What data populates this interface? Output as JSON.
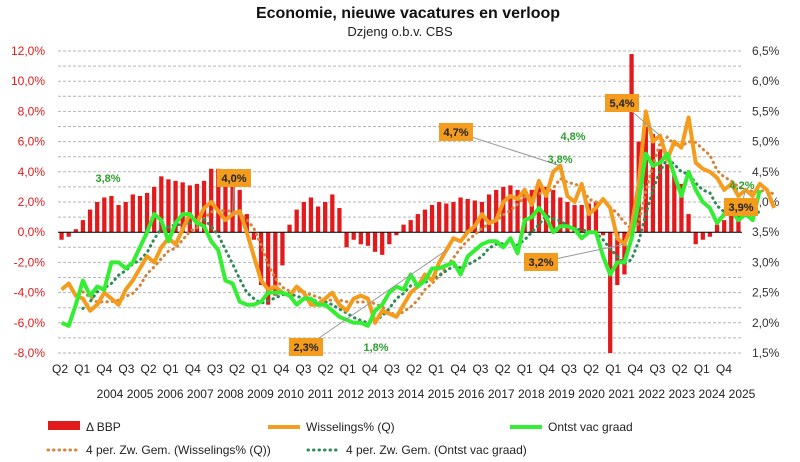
{
  "chart_data": {
    "type": "line",
    "title": "Economie, nieuwe vacatures en verloop",
    "subtitle": "Dzjeng o.b.v. CBS",
    "y_left": {
      "ticks": [
        "12,0%",
        "10,0%",
        "8,0%",
        "6,0%",
        "4,0%",
        "2,0%",
        "0,0%",
        "-2,0%",
        "-4,0%",
        "-6,0%",
        "-8,0%"
      ],
      "range": [
        -8,
        12
      ],
      "color": "#e31a1c"
    },
    "y_right": {
      "ticks": [
        "6,5%",
        "6,0%",
        "5,5%",
        "5,0%",
        "4,5%",
        "4,0%",
        "3,5%",
        "3,0%",
        "2,5%",
        "2,0%",
        "1,5%"
      ],
      "range": [
        1.5,
        6.5
      ]
    },
    "x_ticks_quarter": [
      "Q2",
      "Q1",
      "Q4",
      "Q3",
      "Q2",
      "Q1",
      "Q4",
      "Q3",
      "Q2",
      "Q1",
      "Q4",
      "Q3",
      "Q2",
      "Q1",
      "Q4",
      "Q3",
      "Q2",
      "Q1",
      "Q4",
      "Q3",
      "Q2",
      "Q1",
      "Q4",
      "Q3",
      "Q2",
      "Q1",
      "Q4",
      "Q3",
      "Q2",
      "Q1",
      "Q4"
    ],
    "x_ticks_year": [
      "2004",
      "2005",
      "2006",
      "2007",
      "2008",
      "2009",
      "2010",
      "2011",
      "2012",
      "2013",
      "2014",
      "2015",
      "2016",
      "2017",
      "2018",
      "2019",
      "2020",
      "2021",
      "2022",
      "2023",
      "2024",
      "2025"
    ],
    "grid": "horizontal dashed",
    "legend_position": "bottom",
    "legend": [
      {
        "label": "Δ BBP",
        "style": "bar",
        "color": "#e31a1c"
      },
      {
        "label": "Wisselings% (Q)",
        "style": "line",
        "color": "#f39c1e"
      },
      {
        "label": "Ontst vac graad",
        "style": "line",
        "color": "#33ee33"
      },
      {
        "label": "4 per. Zw. Gem. (Wisselings% (Q))",
        "style": "dotted",
        "color": "#d4853b"
      },
      {
        "label": "4 per. Zw. Gem. (Ontst vac graad)",
        "style": "dotted",
        "color": "#2e8b57"
      }
    ],
    "series": [
      {
        "name": "Δ BBP",
        "axis": "left",
        "type": "bar",
        "values": [
          -0.5,
          -0.3,
          0.2,
          0.8,
          1.5,
          2.0,
          2.3,
          2.4,
          1.8,
          2.0,
          2.5,
          2.4,
          2.6,
          3.0,
          3.7,
          3.5,
          3.4,
          3.3,
          3.1,
          3.2,
          3.4,
          4.2,
          4.2,
          3.5,
          3.2,
          2.8,
          1.2,
          -0.5,
          -3.5,
          -4.8,
          -4.2,
          -2.2,
          0.5,
          1.5,
          2.0,
          2.3,
          1.7,
          2.0,
          2.5,
          1.6,
          -1.0,
          -0.5,
          -0.8,
          -0.9,
          -1.3,
          -1.5,
          -0.8,
          -0.2,
          0.5,
          0.8,
          1.2,
          1.5,
          1.8,
          2.0,
          1.9,
          2.0,
          2.3,
          2.2,
          2.1,
          2.0,
          2.5,
          2.8,
          3.0,
          3.1,
          2.8,
          2.5,
          2.8,
          3.2,
          3.0,
          2.8,
          2.3,
          2.0,
          1.8,
          1.8,
          1.9,
          2.0,
          -0.2,
          -8.0,
          -3.5,
          -2.8,
          11.8,
          6.0,
          7.0,
          6.5,
          5.5,
          4.5,
          3.8,
          3.2,
          1.2,
          -0.8,
          -0.5,
          -0.3,
          0.5,
          0.8,
          1.4,
          1.7
        ],
        "annotations": []
      },
      {
        "name": "Wisselings% (Q)",
        "axis": "right",
        "type": "line",
        "values": [
          2.55,
          2.65,
          2.45,
          2.4,
          2.2,
          2.3,
          2.5,
          2.4,
          2.3,
          2.55,
          2.7,
          2.9,
          3.1,
          3.0,
          3.25,
          3.4,
          3.3,
          3.55,
          3.8,
          3.65,
          3.9,
          4.0,
          3.85,
          3.7,
          3.8,
          3.85,
          3.5,
          3.1,
          2.7,
          2.55,
          2.6,
          2.5,
          2.45,
          2.6,
          2.5,
          2.3,
          2.3,
          2.4,
          2.5,
          2.3,
          2.2,
          2.4,
          2.45,
          2.4,
          2.0,
          2.2,
          2.15,
          2.1,
          2.3,
          2.5,
          2.6,
          2.8,
          2.7,
          3.0,
          3.2,
          3.4,
          3.35,
          3.5,
          3.6,
          3.8,
          3.65,
          3.7,
          4.0,
          4.1,
          4.05,
          4.2,
          3.95,
          4.35,
          4.1,
          4.5,
          4.6,
          4.1,
          4.0,
          4.3,
          3.8,
          3.9,
          4.05,
          3.9,
          3.4,
          3.3,
          3.6,
          4.3,
          5.5,
          5.0,
          5.1,
          4.7,
          5.0,
          4.9,
          5.4,
          4.65,
          4.55,
          4.5,
          4.4,
          4.2,
          4.3,
          4.1,
          4.2,
          4.1,
          4.3,
          4.2,
          3.9
        ],
        "annotations": [
          {
            "label": "4,0%"
          },
          {
            "label": "2,3%"
          },
          {
            "label": "4,7%"
          },
          {
            "label": "3,2%"
          },
          {
            "label": "5,4%"
          },
          {
            "label": "3,9%"
          }
        ]
      },
      {
        "name": "Ontst vac graad",
        "axis": "right",
        "type": "line",
        "values": [
          2.0,
          1.95,
          2.3,
          2.7,
          2.45,
          2.6,
          2.55,
          3.0,
          3.0,
          2.9,
          3.0,
          3.25,
          3.5,
          3.8,
          3.7,
          3.35,
          3.65,
          3.8,
          3.8,
          3.65,
          3.6,
          3.35,
          3.2,
          2.7,
          2.65,
          2.35,
          2.3,
          2.3,
          2.35,
          2.5,
          2.5,
          2.5,
          2.45,
          2.3,
          2.4,
          2.4,
          2.3,
          2.3,
          2.2,
          2.1,
          2.05,
          2.0,
          2.0,
          1.95,
          2.2,
          2.3,
          2.5,
          2.6,
          2.55,
          2.8,
          2.6,
          2.7,
          2.9,
          2.9,
          2.95,
          3.0,
          2.8,
          3.1,
          3.2,
          3.3,
          3.35,
          3.35,
          3.25,
          3.4,
          3.15,
          3.7,
          3.75,
          3.9,
          3.75,
          3.5,
          3.6,
          3.6,
          3.55,
          3.4,
          3.5,
          3.5,
          3.1,
          2.8,
          3.0,
          3.0,
          3.4,
          4.0,
          4.8,
          4.6,
          4.65,
          4.8,
          4.45,
          4.1,
          4.5,
          4.2,
          4.0,
          3.9,
          3.65,
          3.8,
          3.85,
          3.7,
          3.8,
          3.7,
          4.2
        ],
        "annotations": [
          {
            "label": "3,8%"
          },
          {
            "label": "1,8%"
          },
          {
            "label": "3,8%"
          },
          {
            "label": "4,8%"
          },
          {
            "label": "4,2%"
          }
        ]
      }
    ]
  }
}
